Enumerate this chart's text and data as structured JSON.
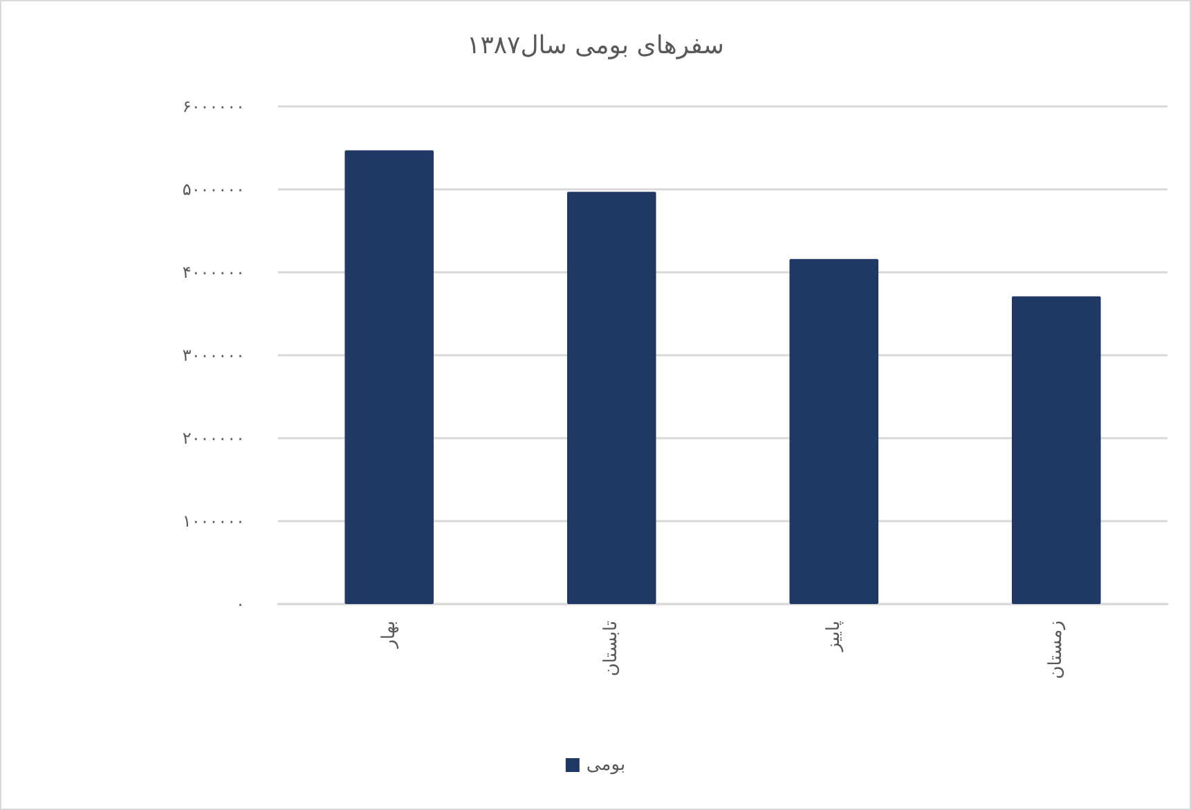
{
  "chart_data": {
    "type": "bar",
    "title": "سفرهای بومی سال۱۳۸۷",
    "categories": [
      "بهار",
      "تابستان",
      "پاییز",
      "زمستان"
    ],
    "series": [
      {
        "name": "بومی",
        "color": "#203864",
        "values": [
          5470000,
          4970000,
          4160000,
          3710000
        ]
      }
    ],
    "ylim": [
      0,
      6000000
    ],
    "yticks": [
      {
        "value": 0,
        "label": "۰"
      },
      {
        "value": 1000000,
        "label": "۱۰۰۰۰۰۰"
      },
      {
        "value": 2000000,
        "label": "۲۰۰۰۰۰۰"
      },
      {
        "value": 3000000,
        "label": "۳۰۰۰۰۰۰"
      },
      {
        "value": 4000000,
        "label": "۴۰۰۰۰۰۰"
      },
      {
        "value": 5000000,
        "label": "۵۰۰۰۰۰۰"
      },
      {
        "value": 6000000,
        "label": "۶۰۰۰۰۰۰"
      }
    ],
    "grid": "y",
    "legend": "bottom"
  }
}
